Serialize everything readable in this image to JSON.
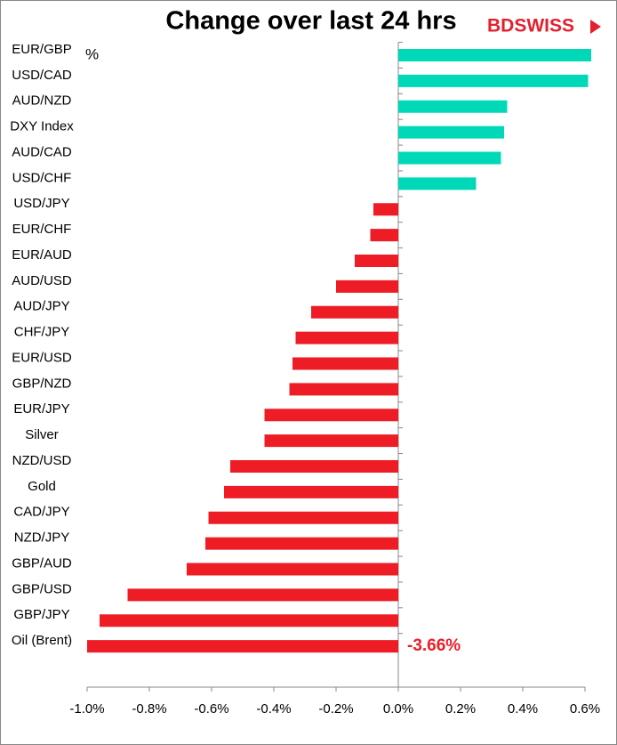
{
  "chart_data": {
    "type": "barh",
    "title": "Change over last 24 hrs",
    "logo": "BDSWISS",
    "unit_label": "%",
    "categories": [
      "EUR/GBP",
      "USD/CAD",
      "AUD/NZD",
      "DXY Index",
      "AUD/CAD",
      "USD/CHF",
      "USD/JPY",
      "EUR/CHF",
      "EUR/AUD",
      "AUD/USD",
      "AUD/JPY",
      "CHF/JPY",
      "EUR/USD",
      "GBP/NZD",
      "EUR/JPY",
      "Silver",
      "NZD/USD",
      "Gold",
      "CAD/JPY",
      "NZD/JPY",
      "GBP/AUD",
      "GBP/USD",
      "GBP/JPY",
      "Oil (Brent)"
    ],
    "values": [
      0.62,
      0.61,
      0.35,
      0.34,
      0.33,
      0.25,
      -0.08,
      -0.09,
      -0.14,
      -0.2,
      -0.28,
      -0.33,
      -0.34,
      -0.35,
      -0.43,
      -0.43,
      -0.54,
      -0.56,
      -0.61,
      -0.62,
      -0.68,
      -0.87,
      -0.96,
      -3.66
    ],
    "value_labels": [
      null,
      null,
      null,
      null,
      null,
      null,
      null,
      null,
      null,
      null,
      null,
      null,
      null,
      null,
      null,
      null,
      null,
      null,
      null,
      null,
      null,
      null,
      null,
      "-3.66%"
    ],
    "positive_color": "#00d9b8",
    "negative_color": "#ee1c25",
    "xlim": [
      -1.0,
      0.7
    ],
    "xticks": [
      {
        "value": -1.0,
        "label": "-1.0%"
      },
      {
        "value": -0.8,
        "label": "-0.8%"
      },
      {
        "value": -0.6,
        "label": "-0.6%"
      },
      {
        "value": -0.4,
        "label": "-0.4%"
      },
      {
        "value": -0.2,
        "label": "-0.2%"
      },
      {
        "value": 0,
        "label": "0.0%"
      },
      {
        "value": 0.2,
        "label": "0.2%"
      },
      {
        "value": 0.4,
        "label": "0.4%"
      },
      {
        "value": 0.6,
        "label": "0.6%"
      }
    ],
    "grid": false
  }
}
